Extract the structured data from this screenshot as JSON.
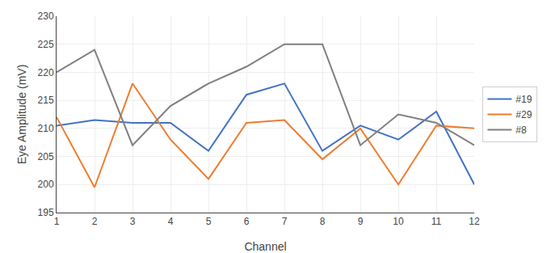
{
  "chart_data": {
    "type": "line",
    "x": [
      1,
      2,
      3,
      4,
      5,
      6,
      7,
      8,
      9,
      10,
      11,
      12
    ],
    "series": [
      {
        "name": "#19",
        "color": "#4472C4",
        "values": [
          210.5,
          211.5,
          211,
          211,
          206,
          216,
          218,
          206,
          210.5,
          208,
          213,
          200
        ]
      },
      {
        "name": "#29",
        "color": "#ED7D31",
        "values": [
          212,
          199.5,
          218,
          208,
          201,
          211,
          211.5,
          204.5,
          210,
          200,
          210.5,
          210
        ]
      },
      {
        "name": "#8",
        "color": "#7F7F7F",
        "values": [
          220,
          224,
          207,
          214,
          218,
          221,
          225,
          225,
          207,
          212.5,
          211,
          207
        ]
      }
    ],
    "xlabel": "Channel",
    "ylabel": "Eye Amplitude (mV)",
    "xlim": [
      1,
      12
    ],
    "xticks": [
      1,
      2,
      3,
      4,
      5,
      6,
      7,
      8,
      9,
      10,
      11,
      12
    ],
    "ylim": [
      195,
      230
    ],
    "yticks": [
      195,
      200,
      205,
      210,
      215,
      220,
      225,
      230
    ],
    "grid": true,
    "legend": "right"
  }
}
